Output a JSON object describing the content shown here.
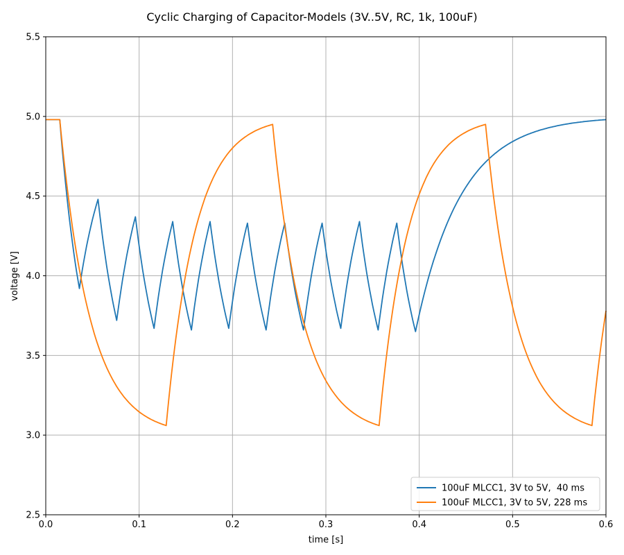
{
  "chart_data": {
    "type": "line",
    "title": "Cyclic Charging of Capacitor-Models (3V..5V, RC, 1k, 100uF)",
    "xlabel": "time [s]",
    "ylabel": "voltage [V]",
    "xlim": [
      0.0,
      0.6
    ],
    "ylim": [
      2.5,
      5.5
    ],
    "xticks": [
      0.0,
      0.1,
      0.2,
      0.3,
      0.4,
      0.5,
      0.6
    ],
    "xtick_labels": [
      "0.0",
      "0.1",
      "0.2",
      "0.3",
      "0.4",
      "0.5",
      "0.6"
    ],
    "yticks": [
      2.5,
      3.0,
      3.5,
      4.0,
      4.5,
      5.0,
      5.5
    ],
    "ytick_labels": [
      "2.5",
      "3.0",
      "3.5",
      "4.0",
      "4.5",
      "5.0",
      "5.5"
    ],
    "grid": true,
    "legend_position": "lower-right",
    "series": [
      {
        "name": "100uF MLCC1, 3V to 5V,  40 ms",
        "color": "#1f77b4",
        "x": [
          0.0,
          0.015,
          0.036,
          0.056,
          0.076,
          0.096,
          0.116,
          0.136,
          0.156,
          0.176,
          0.196,
          0.216,
          0.236,
          0.256,
          0.276,
          0.296,
          0.316,
          0.336,
          0.356,
          0.376,
          0.396,
          0.6
        ],
        "y": [
          4.98,
          4.98,
          3.92,
          4.48,
          3.72,
          4.37,
          3.67,
          4.34,
          3.66,
          4.34,
          3.67,
          4.33,
          3.66,
          4.33,
          3.66,
          4.33,
          3.67,
          4.34,
          3.66,
          4.33,
          3.65,
          4.98
        ]
      },
      {
        "name": "100uF MLCC1, 3V to 5V, 228 ms",
        "color": "#ff7f0e",
        "x": [
          0.0,
          0.015,
          0.129,
          0.243,
          0.357,
          0.471,
          0.585,
          0.6
        ],
        "y": [
          4.98,
          4.98,
          3.06,
          4.95,
          3.06,
          4.95,
          3.06,
          3.78
        ]
      }
    ]
  }
}
